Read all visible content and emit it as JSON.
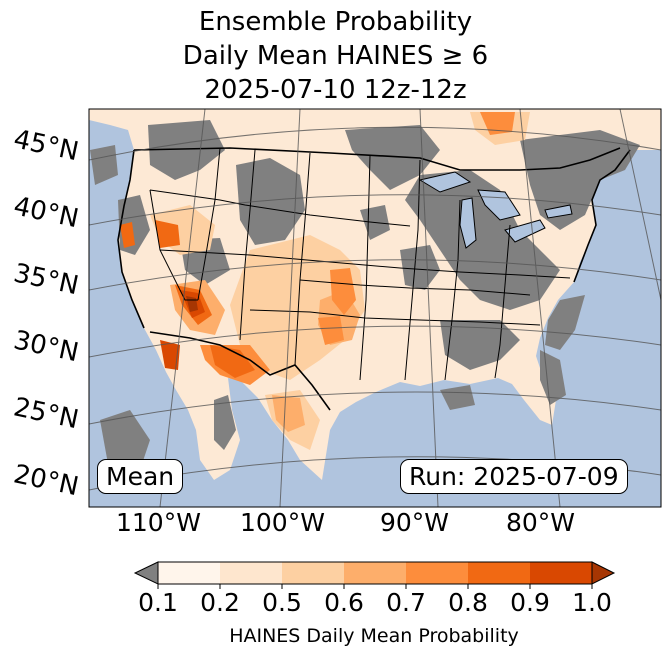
{
  "title": {
    "line1": "Ensemble Probability",
    "line2": "Daily Mean HAINES ≥ 6",
    "line3": "2025-07-10 12z-12z"
  },
  "map": {
    "lat_labels": [
      "45°N",
      "40°N",
      "35°N",
      "30°N",
      "25°N",
      "20°N"
    ],
    "lon_labels": [
      "110°W",
      "100°W",
      "90°W",
      "80°W"
    ],
    "stat_box": "Mean",
    "run_box": "Run: 2025-07-09",
    "colors": {
      "ocean": "#b0c4de",
      "land_masked": "#808080",
      "borders": "#000000",
      "gridlines": "#555555"
    }
  },
  "colorbar": {
    "ticks": [
      "0.1",
      "0.2",
      "0.5",
      "0.6",
      "0.7",
      "0.8",
      "0.9",
      "1.0"
    ],
    "colors": [
      "#fff5eb",
      "#fee6ce",
      "#fdd0a2",
      "#fdae6b",
      "#fd8d3c",
      "#f16913",
      "#d94801",
      "#a63603"
    ],
    "under_color": "#808080",
    "label": "HAINES Daily Mean Probability"
  }
}
